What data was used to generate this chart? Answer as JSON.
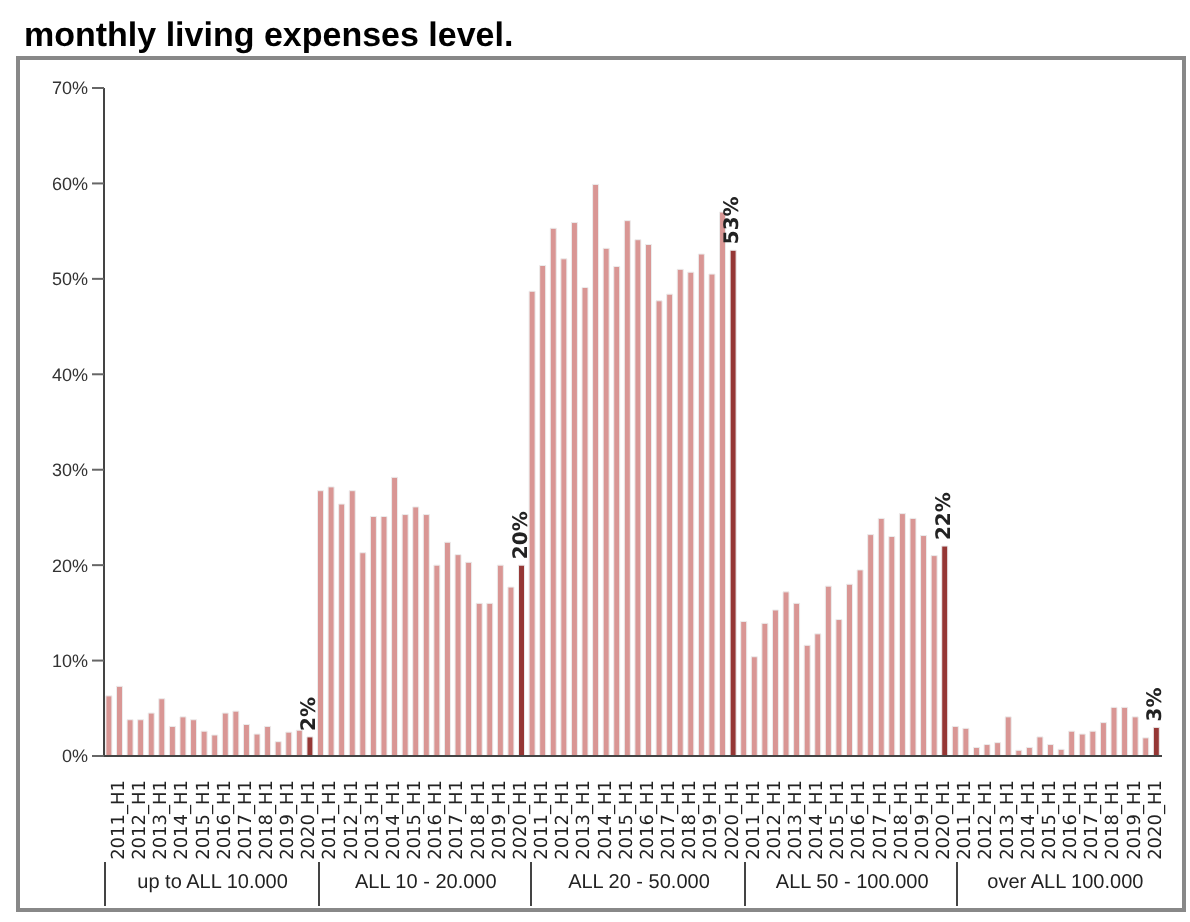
{
  "chart_data": {
    "type": "bar",
    "title": "monthly living expenses level.",
    "categories": [
      null,
      "2011_H1",
      null,
      "2012_H1",
      null,
      "2013_H1",
      null,
      "2014_H1",
      null,
      "2015_H1",
      null,
      "2016_H1",
      null,
      "2017_H1",
      null,
      "2018_H1",
      null,
      "2019_H1",
      null,
      "2020_H1",
      null,
      "2011_H1",
      null,
      "2012_H1",
      null,
      "2013_H1",
      null,
      "2014_H1",
      null,
      "2015_H1",
      null,
      "2016_H1",
      null,
      "2017_H1",
      null,
      "2018_H1",
      null,
      "2019_H1",
      null,
      "2020_H1",
      null,
      "2011_H1",
      null,
      "2012_H1",
      null,
      "2013_H1",
      null,
      "2014_H1",
      null,
      "2015_H1",
      null,
      "2016_H1",
      null,
      "2017_H1",
      null,
      "2018_H1",
      null,
      "2019_H1",
      null,
      "2020_H1",
      null,
      "2011_H1",
      null,
      "2012_H1",
      null,
      "2013_H1",
      null,
      "2014_H1",
      null,
      "2015_H1",
      null,
      "2016_H1",
      null,
      "2017_H1",
      null,
      "2018_H1",
      null,
      "2019_H1",
      null,
      "2020_H1",
      null,
      "2011_H1",
      null,
      "2012_H1",
      null,
      "2013_H1",
      null,
      "2014_H1",
      null,
      "2015_H1",
      null,
      "2016_H1",
      null,
      "2017_H1",
      null,
      "2018_H1",
      null,
      "2019_H1",
      null,
      "2020_H1"
    ],
    "values": [
      6.3,
      7.3,
      3.8,
      3.8,
      4.5,
      6.0,
      3.1,
      4.1,
      3.8,
      2.6,
      2.2,
      4.5,
      4.7,
      3.3,
      2.3,
      3.1,
      1.5,
      2.5,
      2.7,
      2,
      27.8,
      28.2,
      26.4,
      27.8,
      21.3,
      25.1,
      25.1,
      29.2,
      25.3,
      26.1,
      25.3,
      20.0,
      22.4,
      21.1,
      20.3,
      16.0,
      16.0,
      20.0,
      17.7,
      20,
      48.7,
      51.4,
      55.3,
      52.1,
      55.9,
      49.1,
      59.9,
      53.2,
      51.3,
      56.1,
      54.1,
      53.6,
      47.7,
      48.4,
      51.0,
      50.7,
      52.6,
      50.5,
      57.0,
      53,
      14.1,
      10.4,
      13.9,
      15.3,
      17.2,
      16.0,
      11.6,
      12.8,
      17.8,
      14.3,
      18.0,
      19.5,
      23.2,
      24.9,
      23.0,
      25.4,
      24.9,
      23.1,
      21.0,
      22,
      3.1,
      2.9,
      0.9,
      1.2,
      1.4,
      4.1,
      0.6,
      0.9,
      2.0,
      1.2,
      0.7,
      2.6,
      2.3,
      2.6,
      3.5,
      5.1,
      5.1,
      4.1,
      1.9,
      3
    ],
    "colors": [
      "#d99694",
      "#d99694",
      "#d99694",
      "#d99694",
      "#d99694",
      "#d99694",
      "#d99694",
      "#d99694",
      "#d99694",
      "#d99694",
      "#d99694",
      "#d99694",
      "#d99694",
      "#d99694",
      "#d99694",
      "#d99694",
      "#d99694",
      "#d99694",
      "#d99694",
      "#953735",
      "#d99694",
      "#d99694",
      "#d99694",
      "#d99694",
      "#d99694",
      "#d99694",
      "#d99694",
      "#d99694",
      "#d99694",
      "#d99694",
      "#d99694",
      "#d99694",
      "#d99694",
      "#d99694",
      "#d99694",
      "#d99694",
      "#d99694",
      "#d99694",
      "#d99694",
      "#953735",
      "#d99694",
      "#d99694",
      "#d99694",
      "#d99694",
      "#d99694",
      "#d99694",
      "#d99694",
      "#d99694",
      "#d99694",
      "#d99694",
      "#d99694",
      "#d99694",
      "#d99694",
      "#d99694",
      "#d99694",
      "#d99694",
      "#d99694",
      "#d99694",
      "#d99694",
      "#953735",
      "#d99694",
      "#d99694",
      "#d99694",
      "#d99694",
      "#d99694",
      "#d99694",
      "#d99694",
      "#d99694",
      "#d99694",
      "#d99694",
      "#d99694",
      "#d99694",
      "#d99694",
      "#d99694",
      "#d99694",
      "#d99694",
      "#d99694",
      "#d99694",
      "#d99694",
      "#953735",
      "#d99694",
      "#d99694",
      "#d99694",
      "#d99694",
      "#d99694",
      "#d99694",
      "#d99694",
      "#d99694",
      "#d99694",
      "#d99694",
      "#d99694",
      "#d99694",
      "#d99694",
      "#d99694",
      "#d99694",
      "#d99694",
      "#d99694",
      "#d99694",
      "#d99694",
      "#953735"
    ],
    "value_labels": [
      null,
      null,
      null,
      null,
      null,
      null,
      null,
      null,
      null,
      null,
      null,
      null,
      null,
      null,
      null,
      null,
      null,
      null,
      null,
      "2%",
      null,
      null,
      null,
      null,
      null,
      null,
      null,
      null,
      null,
      null,
      null,
      null,
      null,
      null,
      null,
      null,
      null,
      null,
      null,
      "20%",
      null,
      null,
      null,
      null,
      null,
      null,
      null,
      null,
      null,
      null,
      null,
      null,
      null,
      null,
      null,
      null,
      null,
      null,
      null,
      "53%",
      null,
      null,
      null,
      null,
      null,
      null,
      null,
      null,
      null,
      null,
      null,
      null,
      null,
      null,
      null,
      null,
      null,
      null,
      null,
      "22%",
      null,
      null,
      null,
      null,
      null,
      null,
      null,
      null,
      null,
      null,
      null,
      null,
      null,
      null,
      null,
      null,
      null,
      null,
      null,
      "3%"
    ],
    "ylim": [
      0,
      70
    ],
    "yticks": [
      {
        "value": 0,
        "label": "0%"
      },
      {
        "value": 10,
        "label": "10%"
      },
      {
        "value": 20,
        "label": "20%"
      },
      {
        "value": 30,
        "label": "30%"
      },
      {
        "value": 40,
        "label": "40%"
      },
      {
        "value": 50,
        "label": "50%"
      },
      {
        "value": 60,
        "label": "60%"
      },
      {
        "value": 70,
        "label": "70%"
      }
    ],
    "grid": false,
    "legend": false,
    "annotations": [
      "up to ALL 10.000",
      "ALL 10 - 20.000",
      "ALL 20 - 50.000",
      "ALL 50 - 100.000",
      "over ALL 100.000"
    ]
  }
}
